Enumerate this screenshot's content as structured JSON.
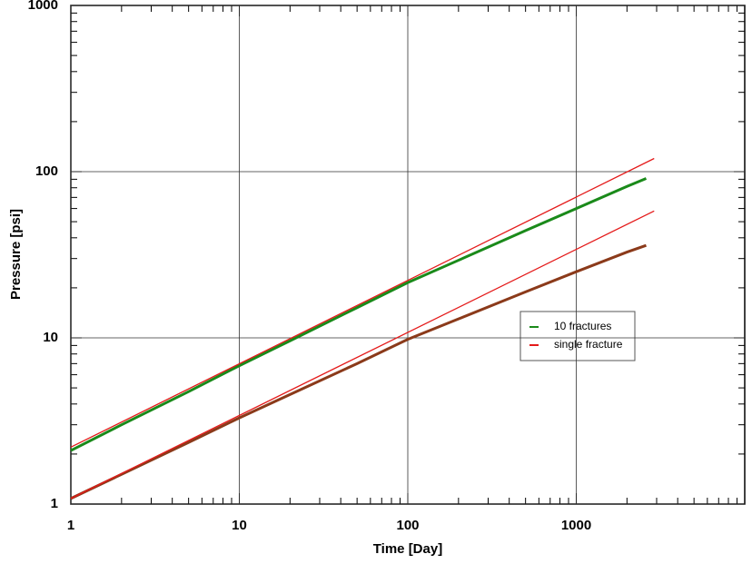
{
  "chart_data": {
    "type": "line",
    "x_label": "Time [Day]",
    "y_label": "Pressure [psi]",
    "log_x": true,
    "log_y": true,
    "grid": true,
    "xlim": [
      1,
      10000
    ],
    "ylim": [
      1,
      1000
    ],
    "xticks": [
      1,
      10,
      100,
      1000
    ],
    "yticks": [
      1,
      10,
      100,
      1000
    ],
    "series": [
      {
        "name": "10 fractures",
        "color": "#1a8a1a",
        "x": [
          1,
          2,
          5,
          10,
          20,
          50,
          100,
          200,
          500,
          1000,
          2000,
          2600
        ],
        "values": [
          2.1,
          3.0,
          4.75,
          6.8,
          9.6,
          15.2,
          21.5,
          29.3,
          44.2,
          60,
          81.5,
          91
        ]
      },
      {
        "color": "#8b3a1a",
        "x": [
          1,
          2,
          5,
          10,
          20,
          50,
          100,
          200,
          500,
          1000,
          2000,
          2600
        ],
        "values": [
          1.08,
          1.51,
          2.35,
          3.3,
          4.56,
          7.0,
          9.8,
          13,
          18.9,
          25,
          32.8,
          36
        ]
      },
      {
        "name": "single fracture",
        "color": "#e41a1a",
        "x": [
          1,
          2900
        ],
        "values": [
          2.2,
          120
        ]
      },
      {
        "color": "#e41a1a",
        "x": [
          1,
          2900
        ],
        "values": [
          1.08,
          58
        ]
      }
    ]
  }
}
